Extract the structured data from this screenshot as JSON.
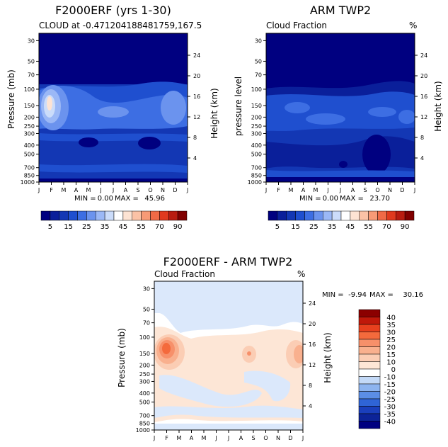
{
  "chart_data": [
    {
      "type": "heatmap",
      "title": "F2000ERF (yrs 1-30)",
      "subtitle": "CLOUD at -0.471204188481759,167.5",
      "ylabel": "Pressure (mb)",
      "right_ylabel": "Height (km)",
      "right_unit": "",
      "x_ticks": [
        "J",
        "F",
        "M",
        "A",
        "M",
        "J",
        "J",
        "A",
        "S",
        "O",
        "N",
        "D",
        "J"
      ],
      "y_ticks": [
        "30",
        "50",
        "70",
        "100",
        "150",
        "200",
        "250",
        "300",
        "400",
        "500",
        "700",
        "850",
        "1000"
      ],
      "right_ticks": [
        "24",
        "20",
        "16",
        "12",
        "8",
        "4"
      ],
      "stats": {
        "min_label": "MIN =",
        "min": "0.00",
        "max_label": "MAX =",
        "max": "45.96"
      },
      "colorbar": {
        "orientation": "horizontal",
        "labels": [
          "5",
          "15",
          "25",
          "35",
          "45",
          "55",
          "70",
          "90"
        ],
        "colors": [
          "#000080",
          "#0a1f9a",
          "#1337b4",
          "#1f4fcf",
          "#3d6ee3",
          "#6b93ee",
          "#9bb8f6",
          "#cbdcfa",
          "#ffffff",
          "#fde3d3",
          "#fbc2a6",
          "#f79a76",
          "#f06a46",
          "#e03a1e",
          "#b81c10",
          "#800000"
        ]
      }
    },
    {
      "type": "heatmap",
      "title": "ARM TWP2",
      "subtitle": "Cloud Fraction",
      "ylabel": "pressure level",
      "right_ylabel": "Height (km)",
      "right_unit": "%",
      "x_ticks": [
        "J",
        "F",
        "M",
        "A",
        "M",
        "J",
        "J",
        "A",
        "S",
        "O",
        "N",
        "D",
        "J"
      ],
      "y_ticks": [
        "30",
        "50",
        "70",
        "100",
        "150",
        "200",
        "250",
        "300",
        "400",
        "500",
        "700",
        "850",
        "1000"
      ],
      "right_ticks": [
        "24",
        "20",
        "16",
        "12",
        "8",
        "4"
      ],
      "stats": {
        "min_label": "MIN =",
        "min": "0.00",
        "max_label": "MAX =",
        "max": "23.70"
      },
      "colorbar": {
        "orientation": "horizontal",
        "labels": [
          "5",
          "15",
          "25",
          "35",
          "45",
          "55",
          "70",
          "90"
        ],
        "colors": [
          "#000080",
          "#0a1f9a",
          "#1337b4",
          "#1f4fcf",
          "#3d6ee3",
          "#6b93ee",
          "#9bb8f6",
          "#cbdcfa",
          "#ffffff",
          "#fde3d3",
          "#fbc2a6",
          "#f79a76",
          "#f06a46",
          "#e03a1e",
          "#b81c10",
          "#800000"
        ]
      }
    },
    {
      "type": "heatmap",
      "title": "F2000ERF - ARM TWP2",
      "subtitle": "Cloud Fraction",
      "ylabel": "Pressure (mb)",
      "right_ylabel": "Height (km)",
      "right_unit": "%",
      "x_ticks": [
        "J",
        "F",
        "M",
        "A",
        "M",
        "J",
        "J",
        "A",
        "S",
        "O",
        "N",
        "D",
        "J"
      ],
      "y_ticks": [
        "30",
        "50",
        "70",
        "100",
        "150",
        "200",
        "250",
        "300",
        "400",
        "500",
        "700",
        "850",
        "1000"
      ],
      "right_ticks": [
        "24",
        "20",
        "16",
        "12",
        "8",
        "4"
      ],
      "stats": {
        "min_label": "MIN =",
        "min": "-9.94",
        "max_label": "MAX =",
        "max": "30.16"
      },
      "colorbar": {
        "orientation": "vertical",
        "labels": [
          "40",
          "35",
          "30",
          "25",
          "20",
          "15",
          "10",
          "0",
          "-10",
          "-15",
          "-20",
          "-25",
          "-30",
          "-35",
          "-40"
        ],
        "colors": [
          "#8b0000",
          "#c0180a",
          "#e8401e",
          "#f46a3c",
          "#f7906a",
          "#f9b08e",
          "#fbcdb4",
          "#fde6d6",
          "#ffffff",
          "#c3d9f7",
          "#8db4ef",
          "#5b8ee6",
          "#2f64d6",
          "#1a3fbc",
          "#0c2398",
          "#000080"
        ]
      }
    }
  ]
}
